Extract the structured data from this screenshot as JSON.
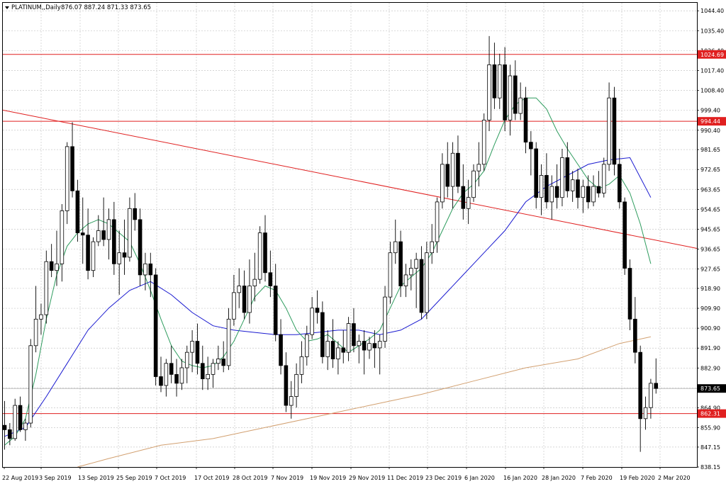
{
  "header": {
    "symbol": "PLATINUM,,Daily",
    "ohlc": "876.07 887.24 871.33 873.65",
    "menu_icon": "triangle-down-icon"
  },
  "colors": {
    "background": "#ffffff",
    "grid": "#c8c8c8",
    "bull_candle": "#ffffff",
    "bear_candle": "#000000",
    "ma_fast": "#2e9c5e",
    "ma_mid": "#1a1ad0",
    "ma_slow": "#d2a070",
    "levels": "#e02020",
    "trendline": "#e02020"
  },
  "chart_data": {
    "type": "candlestick",
    "ylim": [
      838.15,
      1048.0
    ],
    "y_ticks": [
      "1044.40",
      "1035.40",
      "1026.40",
      "1017.40",
      "1008.40",
      "999.40",
      "990.40",
      "981.65",
      "972.65",
      "963.65",
      "954.65",
      "945.65",
      "936.65",
      "927.65",
      "918.90",
      "909.90",
      "900.90",
      "891.90",
      "882.90",
      "873.90",
      "864.90",
      "855.90",
      "847.15",
      "838.15"
    ],
    "x_ticks": [
      "22 Aug 2019",
      "3 Sep 2019",
      "13 Sep 2019",
      "25 Sep 2019",
      "7 Oct 2019",
      "17 Oct 2019",
      "28 Oct 2019",
      "7 Nov 2019",
      "19 Nov 2019",
      "29 Nov 2019",
      "11 Dec 2019",
      "23 Dec 2019",
      "6 Jan 2020",
      "16 Jan 2020",
      "28 Jan 2020",
      "7 Feb 2020",
      "19 Feb 2020",
      "2 Mar 2020"
    ],
    "price_tags": [
      {
        "label": "1024.69",
        "value": 1024.69,
        "style": "level"
      },
      {
        "label": "994.44",
        "value": 994.44,
        "style": "level"
      },
      {
        "label": "873.65",
        "value": 873.65,
        "style": "current"
      },
      {
        "label": "862.31",
        "value": 862.31,
        "style": "level"
      }
    ],
    "horizontal_levels": [
      1024.69,
      994.44,
      862.31
    ],
    "current_price_line": 873.65,
    "trendline": {
      "from": {
        "x": 0,
        "y": 999.5
      },
      "to": {
        "x": 198,
        "y": 937.0
      }
    },
    "candles": [
      [
        857.0,
        868.0,
        846.0,
        855.0
      ],
      [
        855.0,
        858.0,
        848.0,
        851.0
      ],
      [
        851.0,
        869.0,
        850.0,
        866.0
      ],
      [
        866.0,
        870.0,
        854.0,
        855.0
      ],
      [
        855.0,
        860.0,
        850.0,
        858.0
      ],
      [
        858.0,
        896.0,
        856.0,
        893.0
      ],
      [
        893.0,
        920.0,
        890.0,
        905.0
      ],
      [
        905.0,
        912.0,
        898.0,
        907.0
      ],
      [
        907.0,
        936.0,
        903.0,
        931.0
      ],
      [
        931.0,
        939.0,
        924.0,
        927.0
      ],
      [
        927.0,
        945.0,
        920.0,
        930.0
      ],
      [
        930.0,
        957.0,
        922.0,
        954.0
      ],
      [
        954.0,
        985.0,
        948.0,
        983.0
      ],
      [
        983.0,
        994.0,
        960.0,
        963.0
      ],
      [
        963.0,
        968.0,
        940.0,
        944.0
      ],
      [
        944.0,
        960.0,
        930.0,
        943.0
      ],
      [
        943.0,
        955.0,
        923.0,
        927.0
      ],
      [
        927.0,
        942.0,
        924.0,
        940.0
      ],
      [
        940.0,
        952.0,
        938.0,
        945.0
      ],
      [
        945.0,
        960.0,
        938.0,
        941.0
      ],
      [
        941.0,
        955.0,
        932.0,
        950.0
      ],
      [
        950.0,
        958.0,
        925.0,
        930.0
      ],
      [
        930.0,
        945.0,
        916.0,
        935.0
      ],
      [
        935.0,
        950.0,
        925.0,
        933.0
      ],
      [
        933.0,
        960.0,
        931.0,
        955.0
      ],
      [
        955.0,
        962.0,
        945.0,
        950.0
      ],
      [
        950.0,
        955.0,
        920.0,
        925.0
      ],
      [
        925.0,
        935.0,
        918.0,
        930.0
      ],
      [
        930.0,
        935.0,
        915.0,
        925.0
      ],
      [
        925.0,
        928.0,
        875.0,
        879.0
      ],
      [
        879.0,
        888.0,
        872.0,
        875.0
      ],
      [
        875.0,
        887.0,
        870.0,
        885.0
      ],
      [
        885.0,
        893.0,
        876.0,
        880.0
      ],
      [
        880.0,
        887.0,
        870.0,
        876.0
      ],
      [
        876.0,
        887.0,
        873.0,
        883.0
      ],
      [
        883.0,
        893.0,
        876.0,
        890.0
      ],
      [
        890.0,
        900.0,
        881.0,
        895.0
      ],
      [
        895.0,
        903.0,
        880.0,
        885.0
      ],
      [
        885.0,
        893.0,
        873.0,
        878.0
      ],
      [
        878.0,
        888.0,
        873.0,
        880.0
      ],
      [
        880.0,
        887.0,
        874.0,
        885.0
      ],
      [
        885.0,
        893.0,
        882.0,
        887.0
      ],
      [
        887.0,
        895.0,
        881.0,
        884.0
      ],
      [
        884.0,
        910.0,
        882.0,
        905.0
      ],
      [
        905.0,
        925.0,
        902.0,
        917.0
      ],
      [
        917.0,
        928.0,
        910.0,
        920.0
      ],
      [
        920.0,
        927.0,
        905.0,
        908.0
      ],
      [
        908.0,
        932.0,
        903.0,
        920.0
      ],
      [
        920.0,
        935.0,
        913.0,
        923.0
      ],
      [
        923.0,
        947.0,
        921.0,
        944.0
      ],
      [
        944.0,
        952.0,
        922.0,
        926.0
      ],
      [
        926.0,
        936.0,
        915.0,
        920.0
      ],
      [
        920.0,
        930.0,
        895.0,
        898.0
      ],
      [
        898.0,
        905.0,
        880.0,
        884.0
      ],
      [
        884.0,
        890.0,
        863.0,
        866.0
      ],
      [
        866.0,
        877.0,
        860.0,
        870.0
      ],
      [
        870.0,
        885.0,
        865.0,
        880.0
      ],
      [
        880.0,
        895.0,
        876.0,
        888.0
      ],
      [
        888.0,
        902.0,
        884.0,
        898.0
      ],
      [
        898.0,
        915.0,
        896.0,
        910.0
      ],
      [
        910.0,
        918.0,
        903.0,
        908.0
      ],
      [
        908.0,
        913.0,
        885.0,
        888.0
      ],
      [
        888.0,
        900.0,
        882.0,
        895.0
      ],
      [
        895.0,
        905.0,
        883.0,
        887.0
      ],
      [
        887.0,
        895.0,
        880.0,
        892.0
      ],
      [
        892.0,
        900.0,
        885.0,
        890.0
      ],
      [
        890.0,
        906.0,
        886.0,
        903.0
      ],
      [
        903.0,
        910.0,
        890.0,
        893.0
      ],
      [
        893.0,
        898.0,
        885.0,
        895.0
      ],
      [
        895.0,
        900.0,
        880.0,
        891.0
      ],
      [
        891.0,
        897.0,
        887.0,
        894.0
      ],
      [
        894.0,
        900.0,
        883.0,
        892.0
      ],
      [
        892.0,
        898.0,
        880.0,
        895.0
      ],
      [
        895.0,
        920.0,
        892.0,
        915.0
      ],
      [
        915.0,
        940.0,
        912.0,
        935.0
      ],
      [
        935.0,
        950.0,
        930.0,
        940.0
      ],
      [
        940.0,
        945.0,
        915.0,
        920.0
      ],
      [
        920.0,
        930.0,
        915.0,
        925.0
      ],
      [
        925.0,
        932.0,
        918.0,
        928.0
      ],
      [
        928.0,
        935.0,
        910.0,
        932.0
      ],
      [
        932.0,
        938.0,
        905.0,
        908.0
      ],
      [
        908.0,
        940.0,
        905.0,
        935.0
      ],
      [
        935.0,
        948.0,
        930.0,
        940.0
      ],
      [
        940.0,
        960.0,
        935.0,
        958.0
      ],
      [
        958.0,
        980.0,
        955.0,
        975.0
      ],
      [
        975.0,
        985.0,
        960.0,
        965.0
      ],
      [
        965.0,
        985.0,
        955.0,
        980.0
      ],
      [
        980.0,
        988.0,
        962.0,
        965.0
      ],
      [
        965.0,
        975.0,
        950.0,
        955.0
      ],
      [
        955.0,
        968.0,
        948.0,
        960.0
      ],
      [
        960.0,
        975.0,
        958.0,
        972.0
      ],
      [
        972.0,
        985.0,
        965.0,
        975.0
      ],
      [
        975.0,
        998.0,
        972.0,
        995.0
      ],
      [
        995.0,
        1033.0,
        990.0,
        1020.0
      ],
      [
        1020.0,
        1030.0,
        1000.0,
        1005.0
      ],
      [
        1005.0,
        1025.0,
        1000.0,
        1020.0
      ],
      [
        1020.0,
        1028.0,
        990.0,
        995.0
      ],
      [
        995.0,
        1020.0,
        988.0,
        1015.0
      ],
      [
        1015.0,
        1022.0,
        995.0,
        998.0
      ],
      [
        998.0,
        1012.0,
        995.0,
        1005.0
      ],
      [
        1005.0,
        1010.0,
        980.0,
        985.0
      ],
      [
        985.0,
        990.0,
        970.0,
        982.0
      ],
      [
        982.0,
        985.0,
        955.0,
        960.0
      ],
      [
        960.0,
        975.0,
        952.0,
        970.0
      ],
      [
        970.0,
        980.0,
        955.0,
        958.0
      ],
      [
        958.0,
        970.0,
        950.0,
        965.0
      ],
      [
        965.0,
        975.0,
        955.0,
        960.0
      ],
      [
        960.0,
        982.0,
        956.0,
        978.0
      ],
      [
        978.0,
        985.0,
        960.0,
        963.0
      ],
      [
        963.0,
        972.0,
        958.0,
        968.0
      ],
      [
        968.0,
        973.0,
        955.0,
        960.0
      ],
      [
        960.0,
        968.0,
        953.0,
        965.0
      ],
      [
        965.0,
        970.0,
        955.0,
        958.0
      ],
      [
        958.0,
        970.0,
        956.0,
        965.0
      ],
      [
        965.0,
        972.0,
        960.0,
        962.0
      ],
      [
        962.0,
        978.0,
        960.0,
        975.0
      ],
      [
        975.0,
        1012.0,
        972.0,
        1005.0
      ],
      [
        1005.0,
        1010.0,
        970.0,
        975.0
      ],
      [
        975.0,
        982.0,
        955.0,
        958.0
      ],
      [
        958.0,
        960.0,
        925.0,
        928.0
      ],
      [
        928.0,
        932.0,
        900.0,
        905.0
      ],
      [
        905.0,
        915.0,
        885.0,
        890.0
      ],
      [
        890.0,
        893.0,
        845.0,
        860.0
      ],
      [
        860.0,
        870.0,
        855.0,
        865.0
      ],
      [
        865.0,
        878.0,
        860.0,
        876.0
      ],
      [
        876.0,
        887.24,
        871.33,
        873.65
      ]
    ],
    "ma_fast": [
      [
        0,
        848.0
      ],
      [
        2,
        852.0
      ],
      [
        4,
        860.0
      ],
      [
        6,
        880.0
      ],
      [
        8,
        905.0
      ],
      [
        10,
        925.0
      ],
      [
        12,
        938.0
      ],
      [
        14,
        944.0
      ],
      [
        16,
        948.0
      ],
      [
        18,
        950.0
      ],
      [
        20,
        948.0
      ],
      [
        22,
        944.0
      ],
      [
        24,
        940.0
      ],
      [
        26,
        930.0
      ],
      [
        28,
        918.0
      ],
      [
        30,
        905.0
      ],
      [
        32,
        893.0
      ],
      [
        34,
        886.0
      ],
      [
        36,
        884.0
      ],
      [
        38,
        883.0
      ],
      [
        40,
        884.0
      ],
      [
        42,
        888.0
      ],
      [
        44,
        895.0
      ],
      [
        46,
        905.0
      ],
      [
        48,
        915.0
      ],
      [
        50,
        920.0
      ],
      [
        52,
        918.0
      ],
      [
        54,
        910.0
      ],
      [
        56,
        900.0
      ],
      [
        58,
        895.0
      ],
      [
        60,
        896.0
      ],
      [
        62,
        898.0
      ],
      [
        64,
        894.0
      ],
      [
        66,
        890.0
      ],
      [
        68,
        893.0
      ],
      [
        70,
        896.0
      ],
      [
        72,
        900.0
      ],
      [
        74,
        910.0
      ],
      [
        76,
        920.0
      ],
      [
        78,
        924.0
      ],
      [
        80,
        928.0
      ],
      [
        82,
        935.0
      ],
      [
        84,
        945.0
      ],
      [
        86,
        955.0
      ],
      [
        88,
        962.0
      ],
      [
        90,
        966.0
      ],
      [
        92,
        972.0
      ],
      [
        94,
        984.0
      ],
      [
        96,
        995.0
      ],
      [
        98,
        1002.0
      ],
      [
        100,
        1005.0
      ],
      [
        102,
        1005.0
      ],
      [
        104,
        1000.0
      ],
      [
        106,
        990.0
      ],
      [
        108,
        982.0
      ],
      [
        110,
        975.0
      ],
      [
        112,
        968.0
      ],
      [
        114,
        964.0
      ],
      [
        116,
        966.0
      ],
      [
        118,
        970.0
      ],
      [
        120,
        962.0
      ],
      [
        122,
        948.0
      ],
      [
        124,
        930.0
      ]
    ],
    "ma_mid": [
      [
        0,
        852.0
      ],
      [
        4,
        856.0
      ],
      [
        8,
        870.0
      ],
      [
        12,
        885.0
      ],
      [
        16,
        900.0
      ],
      [
        20,
        910.0
      ],
      [
        24,
        918.0
      ],
      [
        28,
        922.0
      ],
      [
        32,
        916.0
      ],
      [
        36,
        908.0
      ],
      [
        40,
        902.0
      ],
      [
        44,
        900.0
      ],
      [
        48,
        899.0
      ],
      [
        52,
        898.0
      ],
      [
        56,
        898.0
      ],
      [
        60,
        899.0
      ],
      [
        64,
        900.0
      ],
      [
        68,
        900.0
      ],
      [
        72,
        898.0
      ],
      [
        76,
        900.0
      ],
      [
        80,
        905.0
      ],
      [
        84,
        915.0
      ],
      [
        88,
        925.0
      ],
      [
        92,
        935.0
      ],
      [
        96,
        945.0
      ],
      [
        100,
        958.0
      ],
      [
        104,
        965.0
      ],
      [
        108,
        970.0
      ],
      [
        112,
        975.0
      ],
      [
        116,
        977.0
      ],
      [
        120,
        978.0
      ],
      [
        124,
        960.0
      ]
    ],
    "ma_slow": [
      [
        14,
        838.15
      ],
      [
        20,
        842.0
      ],
      [
        30,
        848.0
      ],
      [
        40,
        851.0
      ],
      [
        50,
        856.0
      ],
      [
        60,
        861.0
      ],
      [
        70,
        866.0
      ],
      [
        80,
        871.0
      ],
      [
        90,
        877.0
      ],
      [
        100,
        883.0
      ],
      [
        110,
        887.0
      ],
      [
        118,
        894.0
      ],
      [
        124,
        897.0
      ]
    ]
  }
}
